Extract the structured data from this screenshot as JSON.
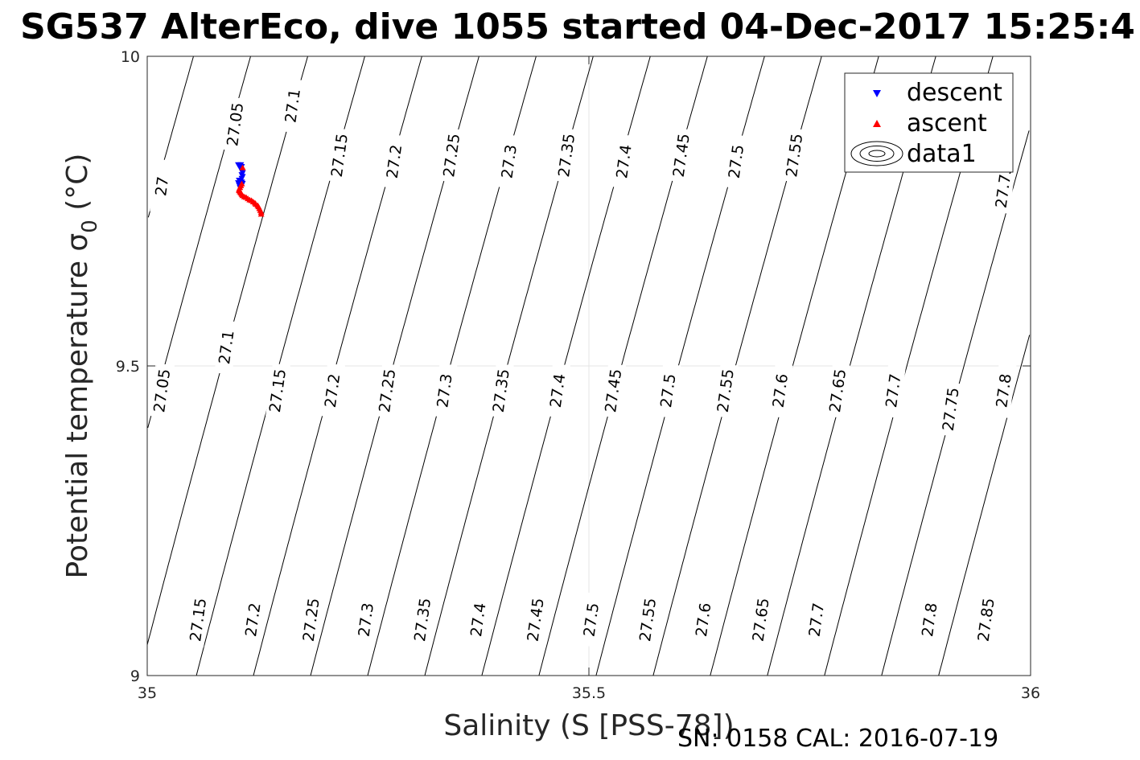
{
  "chart_data": {
    "type": "scatter",
    "title": "SG537 AlterEco, dive 1055 started 04-Dec-2017 15:25:4",
    "xlabel": "Salinity (S [PSS-78])",
    "ylabel": "Potential temperature σ",
    "ylabel_sub": "0",
    "ylabel_unit": " (°C)",
    "xlim": [
      35,
      36
    ],
    "ylim": [
      9,
      10
    ],
    "xticks": [
      35,
      35.5,
      36
    ],
    "xtick_labels": [
      "35",
      "35.5",
      "36"
    ],
    "yticks": [
      9,
      9.5,
      10
    ],
    "ytick_labels": [
      "9",
      "9.5",
      "10"
    ],
    "grid": true,
    "legend_position": "top-right",
    "legend": [
      {
        "label": "descent",
        "marker": "triangle-down",
        "color": "#0000ff"
      },
      {
        "label": "ascent",
        "marker": "triangle-up",
        "color": "#ff0000"
      },
      {
        "label": "data1",
        "marker": "contour",
        "color": "#000000"
      }
    ],
    "contours": {
      "color": "#000000",
      "levels": [
        27.0,
        27.05,
        27.1,
        27.15,
        27.2,
        27.25,
        27.3,
        27.35,
        27.4,
        27.45,
        27.5,
        27.55,
        27.6,
        27.65,
        27.7,
        27.75,
        27.8,
        27.85
      ],
      "labels": [
        {
          "text": "27",
          "s": 35.017,
          "t": 9.79
        },
        {
          "text": "27.05",
          "s": 35.1,
          "t": 9.89
        },
        {
          "text": "27.1",
          "s": 35.165,
          "t": 9.92
        },
        {
          "text": "27.15",
          "s": 35.218,
          "t": 9.84
        },
        {
          "text": "27.2",
          "s": 35.28,
          "t": 9.83
        },
        {
          "text": "27.25",
          "s": 35.345,
          "t": 9.84
        },
        {
          "text": "27.3",
          "s": 35.41,
          "t": 9.83
        },
        {
          "text": "27.35",
          "s": 35.475,
          "t": 9.84
        },
        {
          "text": "27.4",
          "s": 35.54,
          "t": 9.83
        },
        {
          "text": "27.45",
          "s": 35.605,
          "t": 9.84
        },
        {
          "text": "27.5",
          "s": 35.667,
          "t": 9.83
        },
        {
          "text": "27.55",
          "s": 35.733,
          "t": 9.84
        },
        {
          "text": "27.75",
          "s": 35.97,
          "t": 9.79
        },
        {
          "text": "27.05",
          "s": 35.017,
          "t": 9.46
        },
        {
          "text": "27.1",
          "s": 35.09,
          "t": 9.53
        },
        {
          "text": "27.15",
          "s": 35.148,
          "t": 9.46
        },
        {
          "text": "27.2",
          "s": 35.21,
          "t": 9.46
        },
        {
          "text": "27.25",
          "s": 35.272,
          "t": 9.46
        },
        {
          "text": "27.3",
          "s": 35.337,
          "t": 9.46
        },
        {
          "text": "27.35",
          "s": 35.401,
          "t": 9.46
        },
        {
          "text": "27.4",
          "s": 35.465,
          "t": 9.46
        },
        {
          "text": "27.45",
          "s": 35.528,
          "t": 9.46
        },
        {
          "text": "27.5",
          "s": 35.59,
          "t": 9.46
        },
        {
          "text": "27.55",
          "s": 35.655,
          "t": 9.46
        },
        {
          "text": "27.6",
          "s": 35.717,
          "t": 9.46
        },
        {
          "text": "27.65",
          "s": 35.782,
          "t": 9.46
        },
        {
          "text": "27.7",
          "s": 35.845,
          "t": 9.46
        },
        {
          "text": "27.75",
          "s": 35.91,
          "t": 9.43
        },
        {
          "text": "27.8",
          "s": 35.97,
          "t": 9.46
        },
        {
          "text": "27.15",
          "s": 35.058,
          "t": 9.09
        },
        {
          "text": "27.2",
          "s": 35.12,
          "t": 9.09
        },
        {
          "text": "27.25",
          "s": 35.186,
          "t": 9.09
        },
        {
          "text": "27.3",
          "s": 35.248,
          "t": 9.09
        },
        {
          "text": "27.35",
          "s": 35.312,
          "t": 9.09
        },
        {
          "text": "27.4",
          "s": 35.375,
          "t": 9.09
        },
        {
          "text": "27.45",
          "s": 35.44,
          "t": 9.09
        },
        {
          "text": "27.5",
          "s": 35.503,
          "t": 9.09
        },
        {
          "text": "27.55",
          "s": 35.567,
          "t": 9.09
        },
        {
          "text": "27.6",
          "s": 35.63,
          "t": 9.09
        },
        {
          "text": "27.65",
          "s": 35.695,
          "t": 9.09
        },
        {
          "text": "27.7",
          "s": 35.758,
          "t": 9.09
        },
        {
          "text": "27.8",
          "s": 35.886,
          "t": 9.09
        },
        {
          "text": "27.85",
          "s": 35.95,
          "t": 9.09
        }
      ]
    },
    "series": [
      {
        "name": "descent",
        "marker": "triangle-down",
        "color": "#0000ff",
        "x": [
          35.103,
          35.104,
          35.106,
          35.107,
          35.106,
          35.107,
          35.108,
          35.107,
          35.108,
          35.107,
          35.106,
          35.107,
          35.108,
          35.107,
          35.106,
          35.105,
          35.104,
          35.103,
          35.104,
          35.106
        ],
        "y": [
          9.825,
          9.823,
          9.825,
          9.822,
          9.818,
          9.815,
          9.812,
          9.809,
          9.806,
          9.803,
          9.8,
          9.797,
          9.795,
          9.792,
          9.79,
          9.788,
          9.792,
          9.796,
          9.8,
          9.82
        ]
      },
      {
        "name": "ascent",
        "marker": "triangle-up",
        "color": "#ff0000",
        "x": [
          35.129,
          35.129,
          35.128,
          35.127,
          35.126,
          35.125,
          35.123,
          35.122,
          35.12,
          35.118,
          35.116,
          35.114,
          35.112,
          35.11,
          35.108,
          35.107,
          35.106,
          35.105,
          35.104,
          35.104,
          35.105,
          35.106,
          35.107,
          35.108
        ],
        "y": [
          9.745,
          9.748,
          9.751,
          9.754,
          9.757,
          9.759,
          9.761,
          9.763,
          9.765,
          9.767,
          9.768,
          9.77,
          9.772,
          9.773,
          9.775,
          9.777,
          9.779,
          9.781,
          9.783,
          9.785,
          9.788,
          9.791,
          9.794,
          9.82
        ]
      }
    ]
  },
  "footer": {
    "sn_cal": "SN: 0158  CAL: 2016-07-19"
  }
}
